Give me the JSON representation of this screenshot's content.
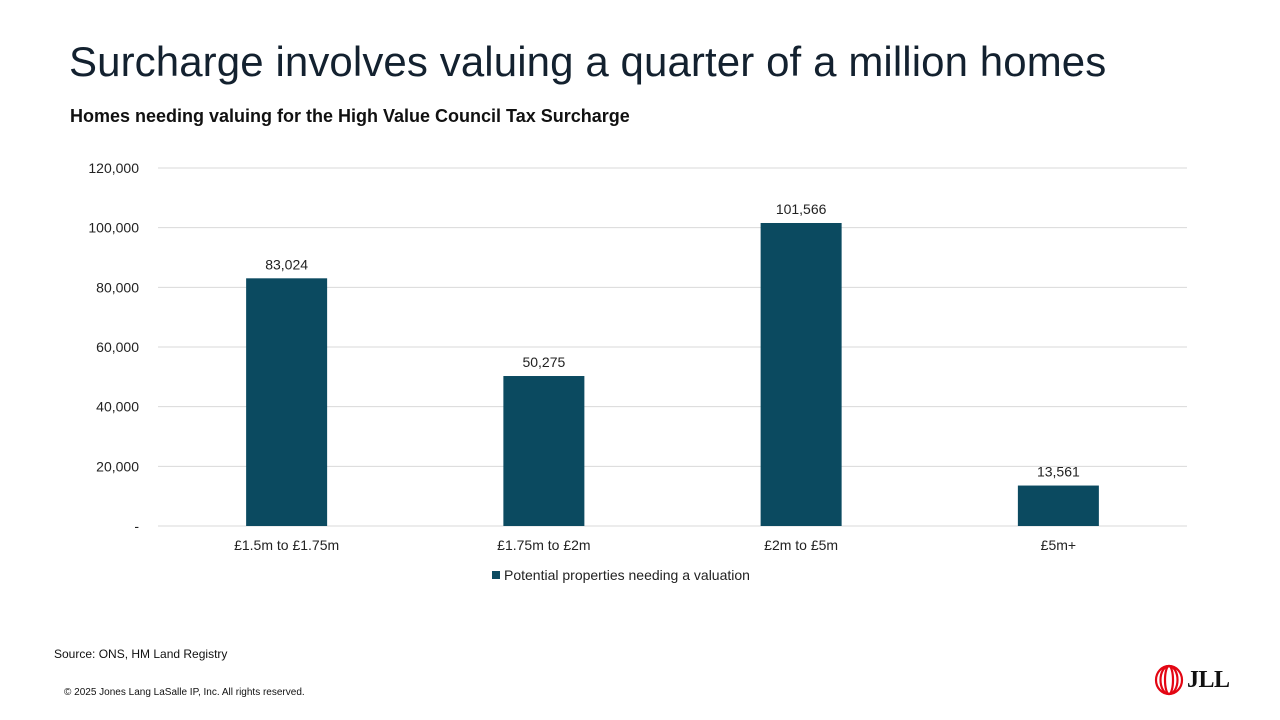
{
  "slide": {
    "title": "Surcharge involves valuing a quarter of a million homes",
    "subtitle": "Homes needing valuing for the High Value Council Tax Surcharge",
    "source": "Source: ONS, HM Land Registry",
    "copyright": "© 2025 Jones Lang LaSalle IP, Inc. All rights reserved.",
    "logo_text": "JLL"
  },
  "colors": {
    "bar": "#0b4a60",
    "grid": "#d9d9d9",
    "text": "#222222",
    "logo_red": "#e30613"
  },
  "chart_data": {
    "type": "bar",
    "title": "Homes needing valuing for the High Value Council Tax Surcharge",
    "xlabel": "",
    "ylabel": "",
    "categories": [
      "£1.5m to £1.75m",
      "£1.75m to £2m",
      "£2m to £5m",
      "£5m+"
    ],
    "series": [
      {
        "name": "Potential properties needing a valuation",
        "values": [
          83024,
          50275,
          101566,
          13561
        ]
      }
    ],
    "data_labels": [
      "83,024",
      "50,275",
      "101,566",
      "13,561"
    ],
    "ylim": [
      0,
      120000
    ],
    "yticks": [
      0,
      20000,
      40000,
      60000,
      80000,
      100000,
      120000
    ],
    "ytick_labels": [
      "-",
      "20,000",
      "40,000",
      "60,000",
      "80,000",
      "100,000",
      "120,000"
    ],
    "grid": true,
    "legend_position": "bottom-center"
  }
}
